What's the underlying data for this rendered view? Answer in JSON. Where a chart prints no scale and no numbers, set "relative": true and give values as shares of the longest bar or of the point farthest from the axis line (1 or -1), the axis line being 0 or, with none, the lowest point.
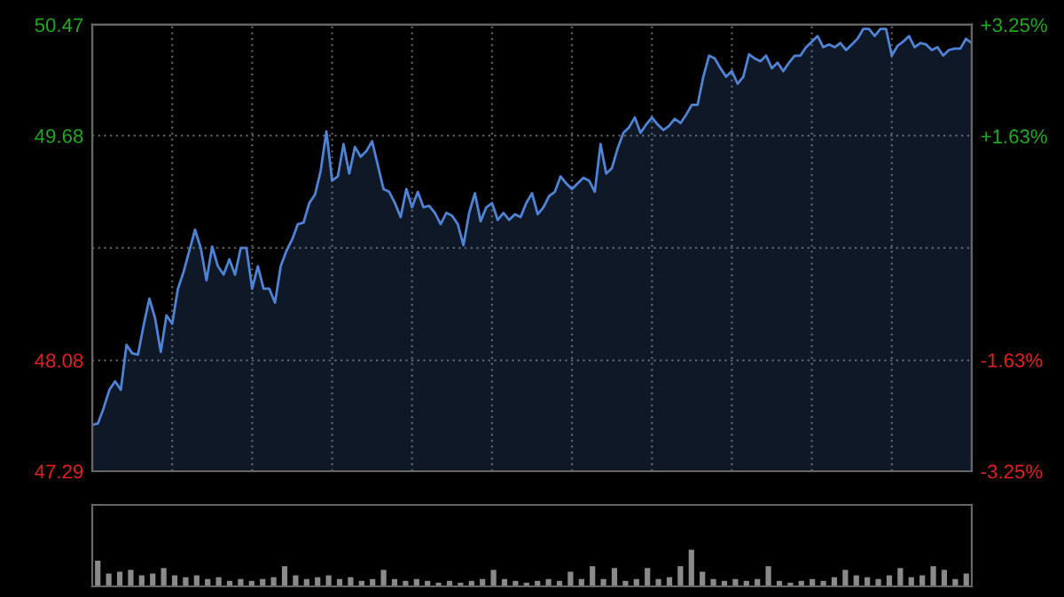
{
  "chart_data": [
    {
      "type": "area",
      "grid": true,
      "tick_labels": "y",
      "categories": [
        null,
        null,
        null,
        null,
        null,
        null,
        null,
        null,
        null,
        null,
        null,
        null,
        null,
        null,
        null,
        null,
        null,
        null,
        null,
        null,
        null,
        null,
        null,
        null,
        null,
        null,
        null,
        null,
        null,
        null,
        null,
        null,
        null,
        null,
        null,
        null,
        null,
        null,
        null,
        null,
        null,
        null,
        null,
        null,
        null,
        null,
        null,
        null,
        null,
        null,
        null,
        null,
        null,
        null,
        null,
        null,
        null,
        null,
        null,
        null,
        null,
        null,
        null,
        null,
        null,
        null,
        null,
        null,
        null,
        null,
        null,
        null,
        null,
        null,
        null,
        null,
        null,
        null,
        null,
        null,
        null,
        null,
        null,
        null,
        null,
        null,
        null,
        null,
        null,
        null,
        null,
        null,
        null,
        null,
        null,
        null,
        null,
        null,
        null,
        null,
        null,
        null,
        null,
        null,
        null,
        null,
        null,
        null,
        null,
        null,
        null,
        null,
        null,
        null,
        null,
        null,
        null,
        null,
        null,
        null,
        null,
        null,
        null,
        null,
        null,
        null,
        null,
        null,
        null,
        null,
        null,
        null,
        null,
        null,
        null,
        null,
        null,
        null,
        null,
        null,
        null,
        null,
        null,
        null,
        null,
        null,
        null,
        null,
        null,
        null,
        null,
        null,
        null,
        null,
        null
      ],
      "ylim": [
        47.29,
        50.47
      ],
      "yticks": [
        47.29,
        48.08,
        {
          "value": 48.88,
          "label": null
        },
        49.68,
        50.47
      ],
      "y2lim": [
        -3.25,
        3.25
      ],
      "y2ticks": [
        {
          "value": -3.25,
          "label": "-3.25%"
        },
        {
          "value": -1.63,
          "label": "-1.63%"
        },
        {
          "value": 0,
          "label": null
        },
        {
          "value": 1.63,
          "label": "+1.63%"
        },
        {
          "value": 3.25,
          "label": "+3.25%"
        }
      ],
      "series": [
        {
          "color": "#4f83d6",
          "values": [
            47.62,
            47.63,
            47.74,
            47.87,
            47.93,
            47.87,
            48.19,
            48.13,
            48.12,
            48.33,
            48.52,
            48.38,
            48.14,
            48.4,
            48.34,
            48.59,
            48.71,
            48.86,
            49.01,
            48.88,
            48.65,
            48.89,
            48.75,
            48.69,
            48.8,
            48.69,
            48.88,
            48.88,
            48.59,
            48.75,
            48.59,
            48.59,
            48.49,
            48.75,
            48.86,
            48.94,
            49.05,
            49.06,
            49.2,
            49.26,
            49.43,
            49.71,
            49.36,
            49.39,
            49.62,
            49.41,
            49.6,
            49.53,
            49.57,
            49.64,
            49.47,
            49.3,
            49.28,
            49.2,
            49.1,
            49.3,
            49.17,
            49.28,
            49.17,
            49.18,
            49.13,
            49.05,
            49.13,
            49.11,
            49.05,
            48.9,
            49.13,
            49.27,
            49.07,
            49.17,
            49.2,
            49.08,
            49.13,
            49.08,
            49.12,
            49.1,
            49.2,
            49.27,
            49.12,
            49.17,
            49.25,
            49.28,
            49.39,
            49.34,
            49.3,
            49.34,
            49.38,
            49.36,
            49.28,
            49.62,
            49.41,
            49.45,
            49.59,
            49.7,
            49.74,
            49.81,
            49.7,
            49.76,
            49.81,
            49.76,
            49.72,
            49.75,
            49.8,
            49.77,
            49.83,
            49.9,
            49.9,
            50.1,
            50.25,
            50.23,
            50.16,
            50.1,
            50.14,
            50.05,
            50.1,
            50.26,
            50.23,
            50.21,
            50.25,
            50.16,
            50.2,
            50.14,
            50.2,
            50.25,
            50.25,
            50.31,
            50.35,
            50.39,
            50.31,
            50.33,
            50.31,
            50.34,
            50.29,
            50.33,
            50.37,
            50.44,
            50.44,
            50.39,
            50.44,
            50.44,
            50.25,
            50.32,
            50.35,
            50.39,
            50.31,
            50.34,
            50.33,
            50.29,
            50.31,
            50.25,
            50.29,
            50.3,
            50.3,
            50.37,
            50.34
          ]
        }
      ]
    },
    {
      "type": "bar",
      "relative": true,
      "tick_labels": false,
      "categories": [
        null,
        null,
        null,
        null,
        null,
        null,
        null,
        null,
        null,
        null,
        null,
        null,
        null,
        null,
        null,
        null,
        null,
        null,
        null,
        null,
        null,
        null,
        null,
        null,
        null,
        null,
        null,
        null,
        null,
        null,
        null,
        null,
        null,
        null,
        null,
        null,
        null,
        null,
        null,
        null,
        null,
        null,
        null,
        null,
        null,
        null,
        null,
        null,
        null,
        null,
        null,
        null,
        null,
        null,
        null,
        null,
        null,
        null,
        null,
        null,
        null,
        null,
        null,
        null,
        null,
        null,
        null,
        null,
        null,
        null,
        null,
        null,
        null,
        null,
        null,
        null,
        null,
        null,
        null,
        null
      ],
      "color": "#8a8a8a",
      "values": [
        0.7,
        0.35,
        0.4,
        0.45,
        0.3,
        0.35,
        0.5,
        0.3,
        0.25,
        0.3,
        0.2,
        0.25,
        0.15,
        0.2,
        0.15,
        0.2,
        0.25,
        0.55,
        0.3,
        0.2,
        0.25,
        0.3,
        0.2,
        0.25,
        0.15,
        0.2,
        0.45,
        0.2,
        0.15,
        0.2,
        0.15,
        0.1,
        0.15,
        0.1,
        0.15,
        0.2,
        0.45,
        0.2,
        0.15,
        0.1,
        0.15,
        0.2,
        0.15,
        0.4,
        0.2,
        0.55,
        0.2,
        0.5,
        0.15,
        0.2,
        0.5,
        0.2,
        0.25,
        0.55,
        1,
        0.4,
        0.2,
        0.15,
        0.2,
        0.15,
        0.2,
        0.55,
        0.15,
        0.1,
        0.15,
        0.2,
        0.15,
        0.25,
        0.45,
        0.3,
        0.25,
        0.2,
        0.3,
        0.5,
        0.25,
        0.3,
        0.55,
        0.45,
        0.2,
        0.35
      ]
    }
  ]
}
